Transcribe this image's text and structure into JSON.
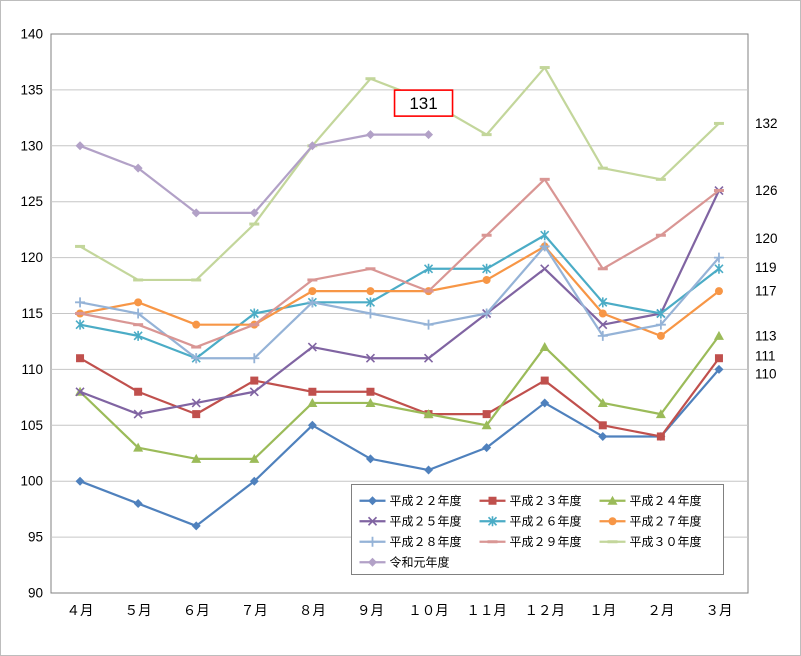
{
  "window": {
    "background": "#ffffff",
    "border_color": "#bdbdbd"
  },
  "chart_data": {
    "type": "line",
    "title": "",
    "xlabel": "",
    "ylabel": "",
    "ylim": [
      90,
      140
    ],
    "ytick_step": 5,
    "grid": true,
    "legend_position": "inside-bottom",
    "categories": [
      "４月",
      "５月",
      "６月",
      "７月",
      "８月",
      "９月",
      "１０月",
      "１１月",
      "１２月",
      "１月",
      "２月",
      "３月"
    ],
    "series": [
      {
        "name": "平成２２年度",
        "color": "#4F81BD",
        "marker": "diamond",
        "values": [
          100,
          98,
          96,
          100,
          105,
          102,
          101,
          103,
          107,
          104,
          104,
          110
        ]
      },
      {
        "name": "平成２３年度",
        "color": "#C0504D",
        "marker": "square",
        "values": [
          111,
          108,
          106,
          109,
          108,
          108,
          106,
          106,
          109,
          105,
          104,
          111
        ]
      },
      {
        "name": "平成２４年度",
        "color": "#9BBB59",
        "marker": "triangle",
        "values": [
          108,
          103,
          102,
          102,
          107,
          107,
          106,
          105,
          112,
          107,
          106,
          113
        ]
      },
      {
        "name": "平成２５年度",
        "color": "#8064A2",
        "marker": "x",
        "values": [
          108,
          106,
          107,
          108,
          112,
          111,
          111,
          115,
          119,
          114,
          115,
          126
        ]
      },
      {
        "name": "平成２６年度",
        "color": "#4BACC6",
        "marker": "asterisk",
        "values": [
          114,
          113,
          111,
          115,
          116,
          116,
          119,
          119,
          122,
          116,
          115,
          119
        ]
      },
      {
        "name": "平成２７年度",
        "color": "#F79646",
        "marker": "circle",
        "values": [
          115,
          116,
          114,
          114,
          117,
          117,
          117,
          118,
          121,
          115,
          113,
          117
        ]
      },
      {
        "name": "平成２８年度",
        "color": "#95B3D7",
        "marker": "plus",
        "values": [
          116,
          115,
          111,
          111,
          116,
          115,
          114,
          115,
          121,
          113,
          114,
          120
        ]
      },
      {
        "name": "平成２９年度",
        "color": "#D99694",
        "marker": "dash",
        "values": [
          115,
          114,
          112,
          114,
          118,
          119,
          117,
          122,
          127,
          119,
          122,
          126
        ]
      },
      {
        "name": "平成３０年度",
        "color": "#C3D69B",
        "marker": "dash",
        "values": [
          121,
          118,
          118,
          123,
          130,
          136,
          134,
          131,
          137,
          128,
          127,
          132
        ]
      },
      {
        "name": "令和元年度",
        "color": "#B2A1C7",
        "marker": "diamond",
        "values": [
          130,
          128,
          124,
          124,
          130,
          131,
          131,
          null,
          null,
          null,
          null,
          null
        ]
      }
    ],
    "annotation": {
      "text": "131",
      "color": "#FF0000"
    },
    "end_labels": [
      {
        "text": "132",
        "value": 132
      },
      {
        "text": "126",
        "value": 126
      },
      {
        "text": "120",
        "value": 121.7
      },
      {
        "text": "119",
        "value": 119.1
      },
      {
        "text": "117",
        "value": 117
      },
      {
        "text": "113",
        "value": 113
      },
      {
        "text": "111",
        "value": 111.2
      },
      {
        "text": "110",
        "value": 109.6
      }
    ],
    "axis_color": "#808080",
    "gridline_color": "#c6c6c6"
  }
}
